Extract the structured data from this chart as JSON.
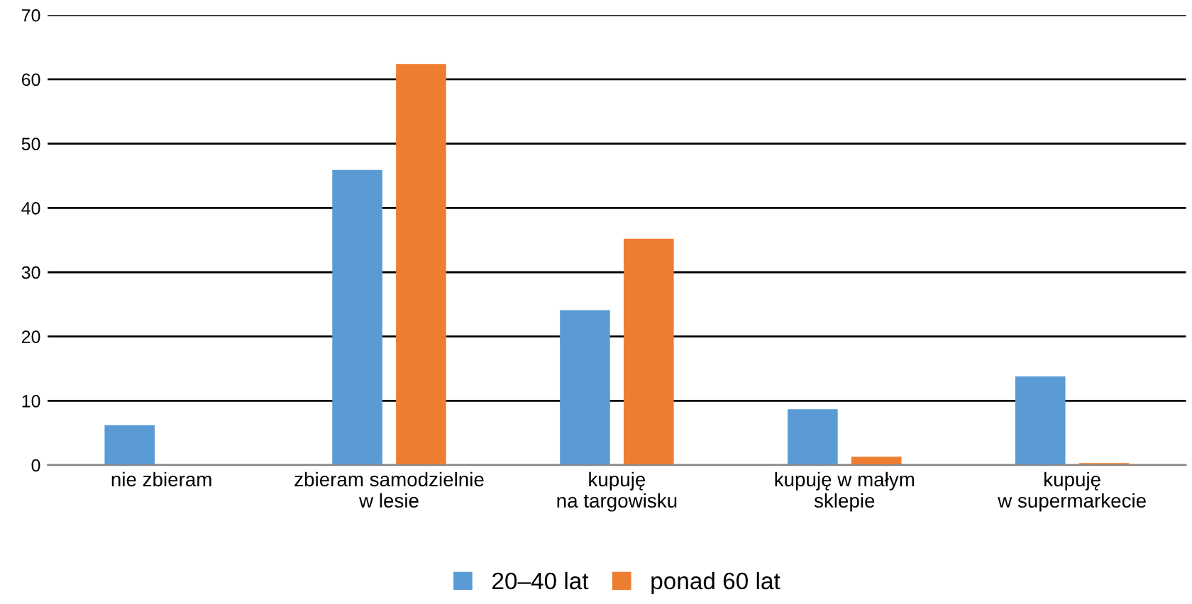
{
  "chart_data": {
    "type": "bar",
    "categories": [
      "nie zbieram",
      "zbieram samodzielnie\nw lesie",
      "kupuję\nna targowisku",
      "kupuję w małym\nsklepie",
      "kupuję\nw supermarkecie"
    ],
    "series": [
      {
        "name": "20–40 lat",
        "color": "#5b9bd5",
        "values": [
          6.2,
          45.9,
          24.1,
          8.7,
          13.8
        ]
      },
      {
        "name": "ponad 60 lat",
        "color": "#ed7d31",
        "values": [
          0,
          62.4,
          35.2,
          1.3,
          0.3
        ]
      }
    ],
    "ylim": [
      0,
      70
    ],
    "yticks": [
      0,
      10,
      20,
      30,
      40,
      50,
      60,
      70
    ],
    "grid": "y",
    "legend": "bottom"
  }
}
